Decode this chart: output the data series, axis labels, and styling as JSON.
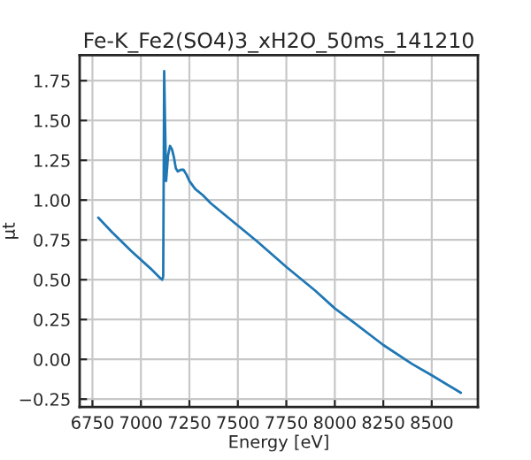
{
  "chart_data": {
    "type": "line",
    "title": "Fe-K_Fe2(SO4)3_xH2O_50ms_141210",
    "xlabel": "Energy [eV]",
    "ylabel": "μt",
    "x": [
      6780,
      6850,
      6950,
      7050,
      7100,
      7110,
      7115,
      7120,
      7125,
      7130,
      7140,
      7150,
      7160,
      7170,
      7180,
      7190,
      7205,
      7220,
      7235,
      7250,
      7280,
      7320,
      7360,
      7400,
      7450,
      7500,
      7600,
      7750,
      7900,
      8000,
      8100,
      8250,
      8400,
      8500,
      8650
    ],
    "series": [
      {
        "color": "#1f77b4",
        "values": [
          0.89,
          0.8,
          0.68,
          0.57,
          0.51,
          0.5,
          0.52,
          1.81,
          1.45,
          1.12,
          1.28,
          1.34,
          1.32,
          1.27,
          1.2,
          1.18,
          1.19,
          1.19,
          1.16,
          1.12,
          1.07,
          1.03,
          0.98,
          0.94,
          0.89,
          0.84,
          0.74,
          0.58,
          0.43,
          0.32,
          0.23,
          0.09,
          -0.03,
          -0.1,
          -0.21
        ]
      }
    ],
    "xlim": [
      6684,
      8738
    ],
    "ylim": [
      -0.3,
      1.91
    ],
    "xticks": [
      6750,
      7000,
      7250,
      7500,
      7750,
      8000,
      8250,
      8500
    ],
    "yticks": [
      {
        "value": -0.25,
        "label": "−0.25"
      },
      {
        "value": 0.0,
        "label": "0.00"
      },
      {
        "value": 0.25,
        "label": "0.25"
      },
      {
        "value": 0.5,
        "label": "0.50"
      },
      {
        "value": 0.75,
        "label": "0.75"
      },
      {
        "value": 1.0,
        "label": "1.00"
      },
      {
        "value": 1.25,
        "label": "1.25"
      },
      {
        "value": 1.5,
        "label": "1.50"
      },
      {
        "value": 1.75,
        "label": "1.75"
      }
    ],
    "grid": true
  }
}
